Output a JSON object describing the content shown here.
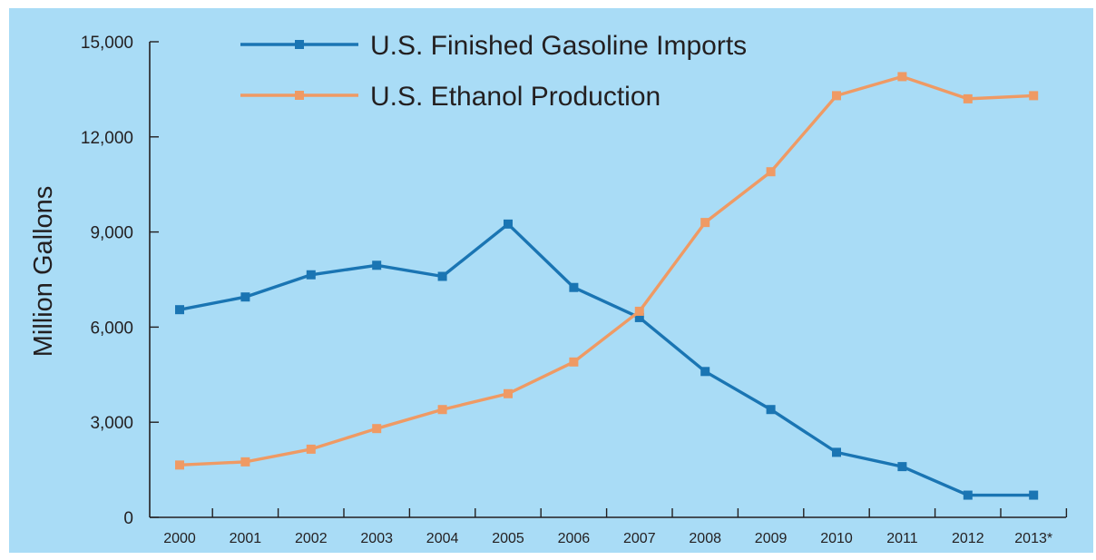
{
  "chart_data": {
    "type": "line",
    "ylabel": "Million Gallons",
    "ylim": [
      0,
      15000
    ],
    "yticks": [
      "15,000",
      "12,000",
      "9,000",
      "6,000",
      "3,000",
      "0"
    ],
    "yticks_values": [
      15000,
      12000,
      9000,
      6000,
      3000,
      0
    ],
    "categories": [
      "2000",
      "2001",
      "2002",
      "2003",
      "2004",
      "2005",
      "2006",
      "2007",
      "2008",
      "2009",
      "2010",
      "2011",
      "2012",
      "2013*"
    ],
    "series": [
      {
        "name": "U.S. Finished Gasoline Imports",
        "color": "#1a75b3",
        "values": [
          6550,
          6950,
          7650,
          7950,
          7600,
          9250,
          7250,
          6300,
          4600,
          3400,
          2050,
          1600,
          700,
          700
        ]
      },
      {
        "name": "U.S. Ethanol Production",
        "color": "#ef9a64",
        "values": [
          1650,
          1750,
          2150,
          2800,
          3400,
          3900,
          4900,
          6500,
          9300,
          10900,
          13300,
          13900,
          13200,
          13300
        ]
      }
    ],
    "legend": "top-left"
  }
}
